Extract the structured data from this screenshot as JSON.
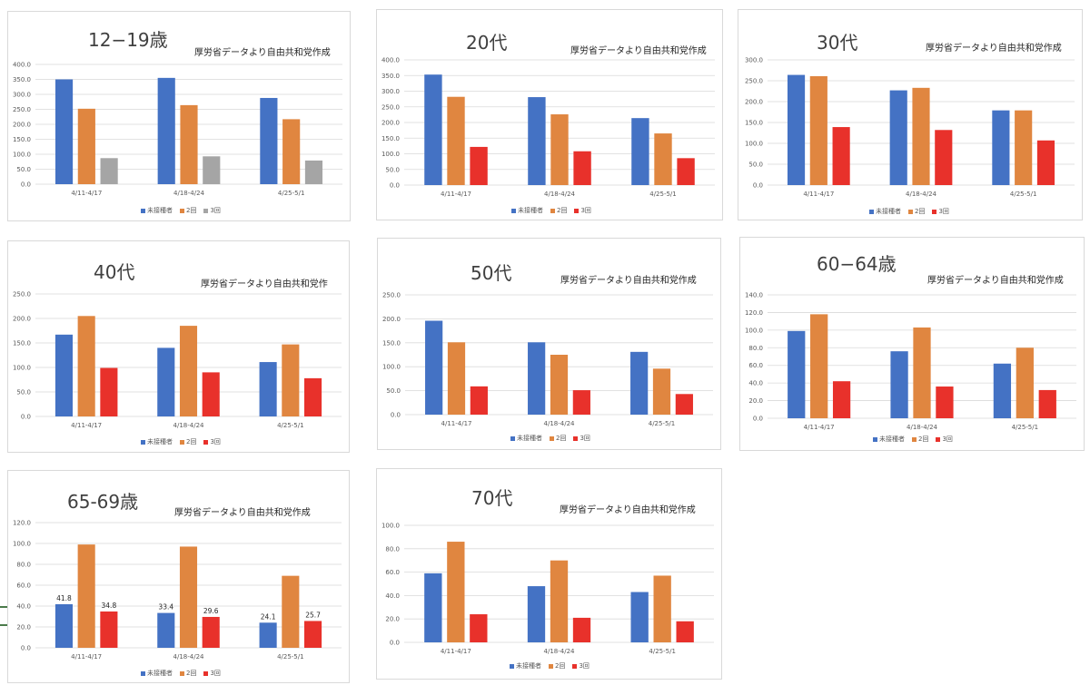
{
  "source_note": "厚労省データより自由共和党作成",
  "colors": {
    "unvaccinated": "#4472c4",
    "dose2": "#e08640",
    "dose3_red": "#e8312b",
    "dose3_gray": "#a5a5a5",
    "grid": "#d9d9d9",
    "axis_text": "#595959"
  },
  "chart_data": [
    {
      "type": "bar",
      "title": "12−19歳",
      "source": "厚労省データより自由共和党作成",
      "categories": [
        "4/11-4/17",
        "4/18-4/24",
        "4/25-5/1"
      ],
      "series": [
        {
          "name": "未接種者",
          "values": [
            350,
            355,
            288
          ]
        },
        {
          "name": "2回",
          "values": [
            252,
            264,
            217
          ]
        },
        {
          "name": "3回",
          "values": [
            87,
            93,
            79
          ]
        }
      ],
      "ylim": [
        0,
        400
      ],
      "yticks": [
        0,
        50,
        100,
        150,
        200,
        250,
        300,
        350,
        400
      ],
      "dose3_color": "gray",
      "legend": "bottom",
      "grid": true
    },
    {
      "type": "bar",
      "title": "20代",
      "source": "厚労省データより自由共和党作成",
      "categories": [
        "4/11-4/17",
        "4/18-4/24",
        "4/25-5/1"
      ],
      "series": [
        {
          "name": "未接種者",
          "values": [
            353,
            281,
            214
          ]
        },
        {
          "name": "2回",
          "values": [
            282,
            226,
            165
          ]
        },
        {
          "name": "3回",
          "values": [
            122,
            108,
            86
          ]
        }
      ],
      "ylim": [
        0,
        400
      ],
      "yticks": [
        0,
        50,
        100,
        150,
        200,
        250,
        300,
        350,
        400
      ],
      "dose3_color": "red",
      "legend": "bottom",
      "grid": true
    },
    {
      "type": "bar",
      "title": "30代",
      "source": "厚労省データより自由共和党作成",
      "categories": [
        "4/11-4/17",
        "4/18-4/24",
        "4/25-5/1"
      ],
      "series": [
        {
          "name": "未接種者",
          "values": [
            264,
            227,
            179
          ]
        },
        {
          "name": "2回",
          "values": [
            261,
            233,
            179
          ]
        },
        {
          "name": "3回",
          "values": [
            139,
            132,
            107
          ]
        }
      ],
      "ylim": [
        0,
        300
      ],
      "yticks": [
        0,
        50,
        100,
        150,
        200,
        250,
        300
      ],
      "dose3_color": "red",
      "legend": "bottom",
      "grid": true
    },
    {
      "type": "bar",
      "title": "40代",
      "source": "厚労省データより自由共和党作",
      "categories": [
        "4/11-4/17",
        "4/18-4/24",
        "4/25-5/1"
      ],
      "series": [
        {
          "name": "未接種者",
          "values": [
            167,
            140,
            111
          ]
        },
        {
          "name": "2回",
          "values": [
            205,
            185,
            147
          ]
        },
        {
          "name": "3回",
          "values": [
            99,
            90,
            78
          ]
        }
      ],
      "ylim": [
        0,
        250
      ],
      "yticks": [
        0,
        50,
        100,
        150,
        200,
        250
      ],
      "dose3_color": "red",
      "legend": "bottom",
      "grid": true
    },
    {
      "type": "bar",
      "title": "50代",
      "source": "厚労省データより自由共和党作成",
      "categories": [
        "4/11-4/17",
        "4/18-4/24",
        "4/25-5/1"
      ],
      "series": [
        {
          "name": "未接種者",
          "values": [
            196,
            151,
            131
          ]
        },
        {
          "name": "2回",
          "values": [
            151,
            125,
            96
          ]
        },
        {
          "name": "3回",
          "values": [
            59,
            51,
            43
          ]
        }
      ],
      "ylim": [
        0,
        250
      ],
      "yticks": [
        0,
        50,
        100,
        150,
        200,
        250
      ],
      "dose3_color": "red",
      "legend": "bottom",
      "grid": true
    },
    {
      "type": "bar",
      "title": "60−64歳",
      "source": "厚労省データより自由共和党作成",
      "categories": [
        "4/11-4/17",
        "4/18-4/24",
        "4/25-5/1"
      ],
      "series": [
        {
          "name": "未接種者",
          "values": [
            99,
            76,
            62
          ]
        },
        {
          "name": "2回",
          "values": [
            118,
            103,
            80
          ]
        },
        {
          "name": "3回",
          "values": [
            42,
            36,
            32
          ]
        }
      ],
      "ylim": [
        0,
        140
      ],
      "yticks": [
        0,
        20,
        40,
        60,
        80,
        100,
        120,
        140
      ],
      "dose3_color": "red",
      "legend": "bottom",
      "grid": true
    },
    {
      "type": "bar",
      "title": "65-69歳",
      "source": "厚労省データより自由共和党作成",
      "categories": [
        "4/11-4/17",
        "4/18-4/24",
        "4/25-5/1"
      ],
      "series": [
        {
          "name": "未接種者",
          "values": [
            41.8,
            33.4,
            24.1
          ],
          "labels": [
            "41.8",
            "33.4",
            "24.1"
          ]
        },
        {
          "name": "2回",
          "values": [
            99,
            97,
            69
          ]
        },
        {
          "name": "3回",
          "values": [
            34.8,
            29.6,
            25.7
          ],
          "labels": [
            "34.8",
            "29.6",
            "25.7"
          ]
        }
      ],
      "ylim": [
        0,
        120
      ],
      "yticks": [
        0,
        20,
        40,
        60,
        80,
        100,
        120
      ],
      "dose3_color": "red",
      "legend": "bottom",
      "grid": true
    },
    {
      "type": "bar",
      "title": "70代",
      "source": "厚労省データより自由共和党作成",
      "categories": [
        "4/11-4/17",
        "4/18-4/24",
        "4/25-5/1"
      ],
      "series": [
        {
          "name": "未接種者",
          "values": [
            59,
            48,
            43
          ]
        },
        {
          "name": "2回",
          "values": [
            86,
            70,
            57
          ]
        },
        {
          "name": "3回",
          "values": [
            24,
            21,
            18
          ]
        }
      ],
      "ylim": [
        0,
        100
      ],
      "yticks": [
        0,
        20,
        40,
        60,
        80,
        100
      ],
      "dose3_color": "red",
      "legend": "bottom",
      "grid": true
    }
  ]
}
